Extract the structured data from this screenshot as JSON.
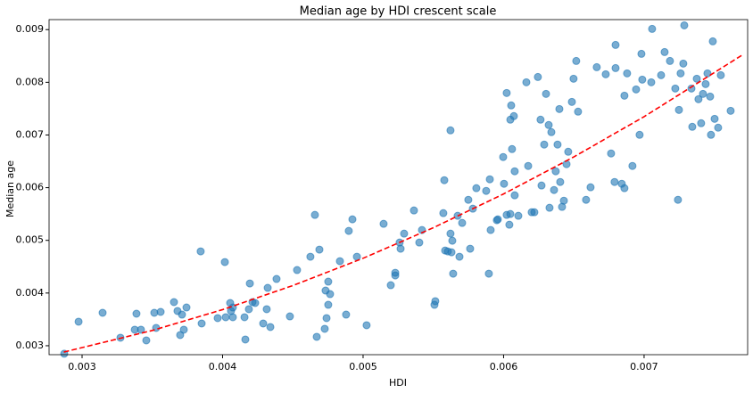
{
  "chart_data": {
    "type": "scatter",
    "title": "Median age by HDI crescent scale",
    "x_label": "HDI",
    "y_label": "Median age",
    "color": "#1f77b4",
    "xlim": [
      0.002765,
      0.007737
    ],
    "ylim": [
      0.00283,
      0.00919
    ],
    "xticks": [
      0.003,
      0.004,
      0.005,
      0.006,
      0.007
    ],
    "yticks": [
      0.003,
      0.004,
      0.005,
      0.006,
      0.007,
      0.008,
      0.009
    ],
    "x": [
      0.002873,
      0.002975,
      0.003146,
      0.003273,
      0.003375,
      0.003387,
      0.003419,
      0.003457,
      0.003514,
      0.003527,
      0.003559,
      0.003654,
      0.003679,
      0.003698,
      0.003711,
      0.003724,
      0.003743,
      0.003844,
      0.003851,
      0.003965,
      0.004016,
      0.004022,
      0.004054,
      0.00406,
      0.004073,
      0.004073,
      0.004156,
      0.004162,
      0.004187,
      0.004194,
      0.004213,
      0.004232,
      0.004289,
      0.004314,
      0.004321,
      0.00434,
      0.004384,
      0.004479,
      0.00453,
      0.004625,
      0.004657,
      0.00467,
      0.004689,
      0.004727,
      0.004733,
      0.00474,
      0.004752,
      0.004752,
      0.004765,
      0.004835,
      0.004879,
      0.004898,
      0.004924,
      0.004956,
      0.005025,
      0.005146,
      0.005197,
      0.005229,
      0.005229,
      0.00526,
      0.005267,
      0.005292,
      0.005362,
      0.0054,
      0.005419,
      0.005508,
      0.005514,
      0.005571,
      0.005578,
      0.005584,
      0.005603,
      0.005622,
      0.005622,
      0.005629,
      0.005635,
      0.005641,
      0.005673,
      0.005686,
      0.005705,
      0.005749,
      0.005762,
      0.005781,
      0.005806,
      0.005876,
      0.005895,
      0.005908,
      0.005902,
      0.005952,
      0.005959,
      0.005997,
      0.006003,
      0.006022,
      0.006022,
      0.006041,
      0.006048,
      0.006048,
      0.006054,
      0.00606,
      0.006073,
      0.006079,
      0.006079,
      0.006105,
      0.006162,
      0.006175,
      0.0062,
      0.006219,
      0.006244,
      0.006263,
      0.00627,
      0.006289,
      0.006302,
      0.006321,
      0.006327,
      0.00634,
      0.006359,
      0.006371,
      0.006384,
      0.006397,
      0.006403,
      0.006416,
      0.006429,
      0.006448,
      0.00646,
      0.006486,
      0.006498,
      0.006517,
      0.00653,
      0.006587,
      0.006619,
      0.006663,
      0.006727,
      0.006765,
      0.00679,
      0.006797,
      0.006797,
      0.006841,
      0.00686,
      0.00686,
      0.006879,
      0.006917,
      0.006943,
      0.006968,
      0.006981,
      0.006987,
      0.007051,
      0.007057,
      0.007121,
      0.007146,
      0.007184,
      0.007222,
      0.007241,
      0.007248,
      0.00726,
      0.007279,
      0.007286,
      0.007337,
      0.007343,
      0.007375,
      0.007387,
      0.007406,
      0.007419,
      0.007438,
      0.007451,
      0.00747,
      0.007476,
      0.007489,
      0.007502,
      0.007527,
      0.007546,
      0.007616
    ],
    "values": [
      0.002848,
      0.003456,
      0.003625,
      0.003152,
      0.003304,
      0.003608,
      0.003304,
      0.003101,
      0.003625,
      0.003338,
      0.003642,
      0.003828,
      0.003659,
      0.003203,
      0.003591,
      0.003304,
      0.003726,
      0.004791,
      0.003422,
      0.003524,
      0.004588,
      0.003541,
      0.003811,
      0.003659,
      0.003541,
      0.003726,
      0.003541,
      0.003118,
      0.003693,
      0.004182,
      0.003828,
      0.003811,
      0.003422,
      0.003693,
      0.004098,
      0.003355,
      0.004267,
      0.003557,
      0.004436,
      0.004689,
      0.005483,
      0.003169,
      0.004824,
      0.003321,
      0.004047,
      0.003524,
      0.003777,
      0.004216,
      0.00398,
      0.004605,
      0.003591,
      0.005179,
      0.005399,
      0.004689,
      0.003389,
      0.005314,
      0.004149,
      0.004385,
      0.004334,
      0.004959,
      0.004841,
      0.005128,
      0.005568,
      0.004959,
      0.005196,
      0.003777,
      0.003845,
      0.005517,
      0.006142,
      0.004807,
      0.004791,
      0.007088,
      0.005128,
      0.004774,
      0.004993,
      0.004368,
      0.005466,
      0.004689,
      0.005331,
      0.00577,
      0.004841,
      0.005601,
      0.00599,
      0.005939,
      0.004368,
      0.005196,
      0.006159,
      0.005382,
      0.005399,
      0.006581,
      0.006074,
      0.007797,
      0.005483,
      0.005297,
      0.0055,
      0.007291,
      0.007561,
      0.006733,
      0.007358,
      0.006311,
      0.005855,
      0.005466,
      0.008,
      0.006412,
      0.005534,
      0.005534,
      0.008101,
      0.007291,
      0.006041,
      0.006818,
      0.00778,
      0.007189,
      0.005618,
      0.007054,
      0.005956,
      0.006311,
      0.006818,
      0.007493,
      0.006108,
      0.005635,
      0.005753,
      0.006446,
      0.006682,
      0.007628,
      0.008068,
      0.008405,
      0.007443,
      0.00577,
      0.006007,
      0.008287,
      0.008152,
      0.006649,
      0.006108,
      0.008709,
      0.00827,
      0.006074,
      0.00599,
      0.007746,
      0.008169,
      0.006412,
      0.007865,
      0.007003,
      0.00854,
      0.008051,
      0.008,
      0.009014,
      0.008135,
      0.008574,
      0.008405,
      0.007882,
      0.00577,
      0.007476,
      0.008169,
      0.008355,
      0.009081,
      0.007882,
      0.007155,
      0.008068,
      0.007679,
      0.007223,
      0.00778,
      0.007966,
      0.008169,
      0.00773,
      0.007003,
      0.008777,
      0.007307,
      0.007139,
      0.008135,
      0.007459
    ],
    "fit": {
      "color": "#ff0000",
      "x": [
        0.00287,
        0.0035,
        0.004,
        0.0045,
        0.005,
        0.0055,
        0.006,
        0.0065,
        0.007,
        0.0077
      ],
      "values": [
        0.00288,
        0.00329,
        0.003685,
        0.004142,
        0.00466,
        0.00524,
        0.005881,
        0.006584,
        0.007348,
        0.00852
      ]
    }
  }
}
